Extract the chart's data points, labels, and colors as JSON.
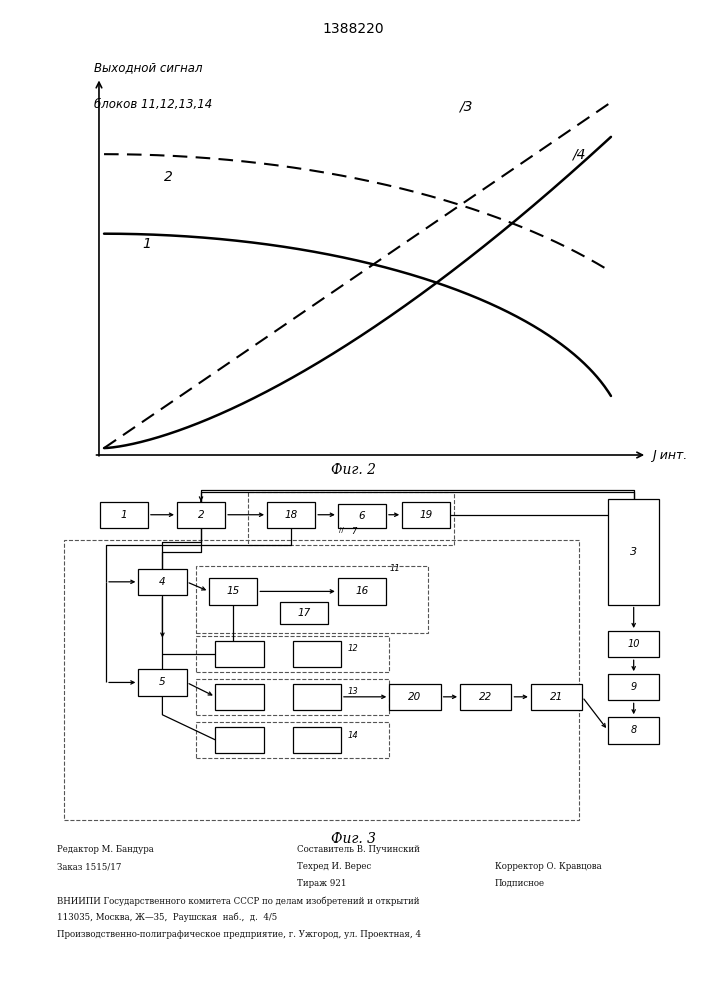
{
  "patent_number": "1388220",
  "fig2_ylabel_line1": "Выходной сигнал",
  "fig2_ylabel_line2": "блоков 11,12,13,14",
  "fig2_xlabel": "J инт.",
  "fig2_caption": "Фиг. 2",
  "fig3_caption": "Фиг. 3",
  "footer_col1_lines": [
    "Редактор М. Бандура",
    "Заказ 1515/17"
  ],
  "footer_col2_lines": [
    "Составитель В. Пучинский",
    "Техред И. Верес",
    "Тираж 921"
  ],
  "footer_col3_lines": [
    "",
    "Корректор О. Кравцова",
    "Подписное"
  ],
  "footer_bottom_lines": [
    "ВНИИПИ Государственного комитета СССР по делам изобретений и открытий",
    "113035, Москва, Ж—35,  Раушская  наб.,  д.  4/5",
    "Производственно-полиграфическое предприятие, г. Ужгород, ул. Проектная, 4"
  ],
  "bg_color": "#ffffff",
  "line_color": "#000000"
}
